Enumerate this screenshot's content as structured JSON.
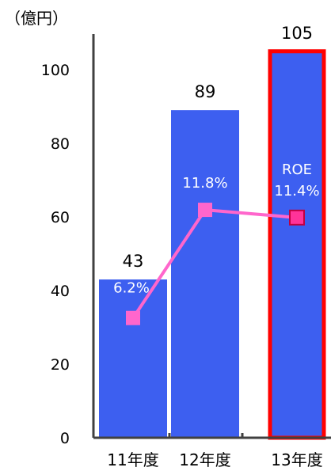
{
  "chart_data": {
    "type": "bar",
    "unit_label": "（億円）",
    "categories": [
      "11年度",
      "12年度",
      "13年度"
    ],
    "values": [
      43,
      89,
      105
    ],
    "value_labels": [
      "43",
      "89",
      "105"
    ],
    "ylim": [
      0,
      100
    ],
    "yticks": [
      0,
      20,
      40,
      60,
      80,
      100
    ],
    "bar_color": "#3d5ff0",
    "highlight_index": 2,
    "highlight_border_color": "#ff0000",
    "roe": {
      "name": "ROE",
      "values": [
        6.2,
        11.8,
        11.4
      ],
      "labels": [
        "6.2%",
        "11.8%",
        "11.4%"
      ],
      "line_color": "#ff66cc",
      "marker_fill": "#ff66cc",
      "highlight_marker_fill": "#ff3399",
      "range": [
        0,
        20
      ]
    },
    "grid": false,
    "legend": "none"
  }
}
